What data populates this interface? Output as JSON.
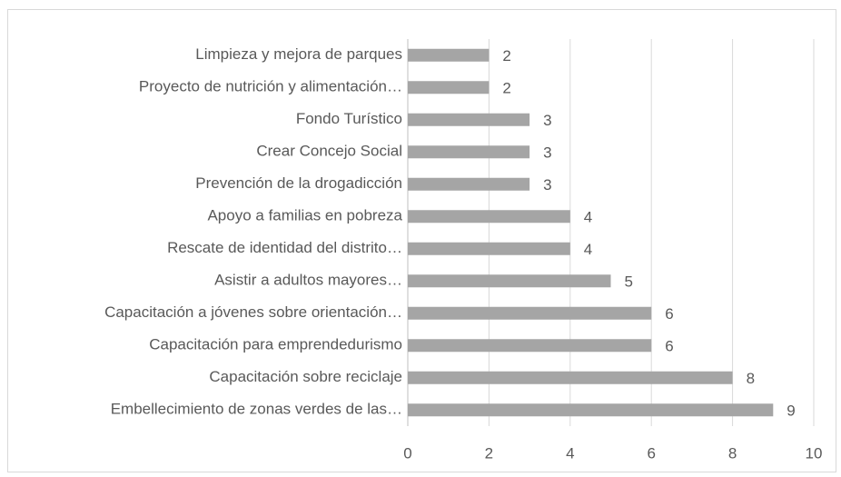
{
  "chart_data": {
    "type": "bar",
    "orientation": "horizontal",
    "categories": [
      "Limpieza y mejora de parques",
      "Proyecto de nutrición y alimentación…",
      "Fondo Turístico",
      "Crear Concejo Social",
      "Prevención de la drogadicción",
      "Apoyo a familias en pobreza",
      "Rescate de identidad del distrito…",
      "Asistir a adultos mayores…",
      "Capacitación a jóvenes sobre orientación…",
      "Capacitación para emprendedurismo",
      "Capacitación sobre reciclaje",
      "Embellecimiento de zonas verdes de las…"
    ],
    "values": [
      2,
      2,
      3,
      3,
      3,
      4,
      4,
      5,
      6,
      6,
      8,
      9
    ],
    "color": "#a5a5a5",
    "xlim": [
      0,
      10
    ],
    "xticks": [
      0,
      2,
      4,
      6,
      8,
      10
    ],
    "grid": true
  }
}
